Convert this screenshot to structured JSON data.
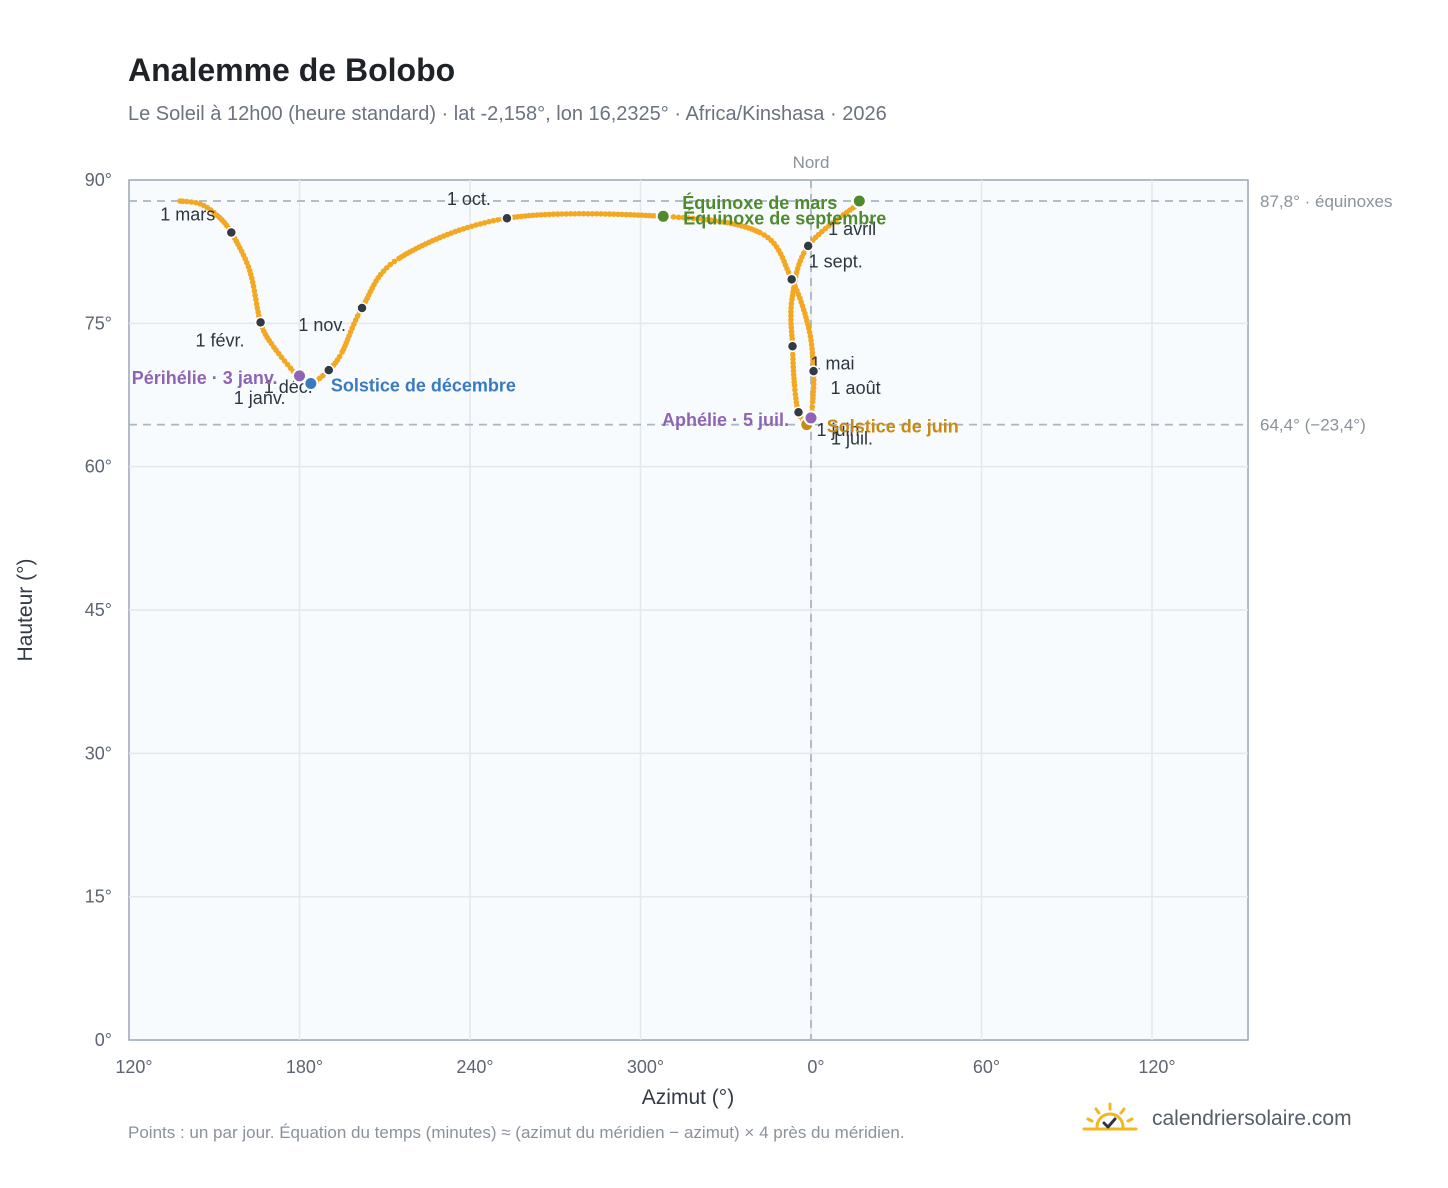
{
  "title": "Analemme de Bolobo",
  "subtitle": "Le Soleil à 12h00 (heure standard) · lat -2,158°, lon 16,2325° · Africa/Kinshasa · 2026",
  "footnote": "Points : un par jour. Équation du temps (minutes) ≈ (azimut du méridien − azimut) × 4 près du méridien.",
  "brand": {
    "text": "calendriersolaire.com",
    "icon": "sun-check-icon"
  },
  "colors": {
    "curve": "#f3a824",
    "month_marker": "#333a45",
    "equinox": "#4f8a2f",
    "june_solstice": "#c98a12",
    "december_solstice": "#3a7bbf",
    "apsis": "#8e65b4",
    "plot_bg": "#f8fbfd",
    "grid": "#e3e8ee",
    "reference_line": "#aab6c2"
  },
  "chart_data": {
    "type": "scatter",
    "xlabel": "Azimut (°)",
    "ylabel": "Hauteur (°)",
    "x_ticks": [
      "120°",
      "180°",
      "240°",
      "300°",
      "0°",
      "60°",
      "120°"
    ],
    "y_ticks": [
      "0°",
      "15°",
      "30°",
      "45°",
      "60°",
      "75°",
      "90°"
    ],
    "ylim": [
      0,
      90
    ],
    "meridian_label": "Nord",
    "reference_lines": [
      {
        "label": "87,8° · équinoxes",
        "y": 87.8
      },
      {
        "label": "64,4° (−23,4°)",
        "y": 64.4
      }
    ],
    "analemma_points": [
      {
        "date": "1 janv.",
        "az": 180.0,
        "alt": 69.2
      },
      {
        "date": "15 janv.",
        "az": 171.0,
        "alt": 72.5
      },
      {
        "date": "1 févr.",
        "az": 166.3,
        "alt": 75.1
      },
      {
        "date": "15 févr.",
        "az": 162.5,
        "alt": 80.5
      },
      {
        "date": "1 mars",
        "az": 156.0,
        "alt": 84.5
      },
      {
        "date": "8 mars",
        "az": 151.0,
        "alt": 86.3
      },
      {
        "date": "15 mars",
        "az": 145.0,
        "alt": 87.5
      },
      {
        "date": "20 mars",
        "az": 138.0,
        "alt": 87.8
      },
      {
        "date": "27 mars",
        "az": 18.0,
        "alt": 87.8
      },
      {
        "date": "1 avril",
        "az": 359.0,
        "alt": 83.1
      },
      {
        "date": "15 avril",
        "az": 353.3,
        "alt": 77.5
      },
      {
        "date": "1 mai",
        "az": 353.5,
        "alt": 72.6
      },
      {
        "date": "15 mai",
        "az": 354.2,
        "alt": 68.5
      },
      {
        "date": "1 juin",
        "az": 355.6,
        "alt": 65.7
      },
      {
        "date": "21 juin",
        "az": 358.5,
        "alt": 64.4
      },
      {
        "date": "1 juil.",
        "az": 359.3,
        "alt": 64.6
      },
      {
        "date": "5 juil.",
        "az": 0.0,
        "alt": 65.1
      },
      {
        "date": "15 juil.",
        "az": 0.6,
        "alt": 66.8
      },
      {
        "date": "1 août",
        "az": 0.9,
        "alt": 70.0
      },
      {
        "date": "15 août",
        "az": 359.2,
        "alt": 74.5
      },
      {
        "date": "1 sept.",
        "az": 353.2,
        "alt": 79.6
      },
      {
        "date": "15 sept.",
        "az": 342.0,
        "alt": 84.5
      },
      {
        "date": "23 sept.",
        "az": 308.0,
        "alt": 86.2
      },
      {
        "date": "1 oct.",
        "az": 253.0,
        "alt": 86.0
      },
      {
        "date": "15 oct.",
        "az": 215.0,
        "alt": 81.8
      },
      {
        "date": "1 nov.",
        "az": 202.0,
        "alt": 76.6
      },
      {
        "date": "15 nov.",
        "az": 195.0,
        "alt": 72.0
      },
      {
        "date": "1 déc.",
        "az": 190.3,
        "alt": 70.1
      },
      {
        "date": "21 déc.",
        "az": 184.0,
        "alt": 68.7
      },
      {
        "date": "31 déc.",
        "az": 180.0,
        "alt": 69.2
      }
    ],
    "month_markers": [
      {
        "label": "1 janv.",
        "az": 180.0,
        "alt": 69.2,
        "anchor": "end",
        "dx": -14,
        "dy": 25
      },
      {
        "label": "1 févr.",
        "az": 166.3,
        "alt": 75.1,
        "anchor": "end",
        "dx": -16,
        "dy": 24
      },
      {
        "label": "1 mars",
        "az": 156.0,
        "alt": 84.5,
        "anchor": "end",
        "dx": -16,
        "dy": -12
      },
      {
        "label": "1 avril",
        "az": 359.0,
        "alt": 83.1,
        "anchor": "start",
        "dx": 20,
        "dy": -11
      },
      {
        "label": "1 mai",
        "az": 353.5,
        "alt": 72.6,
        "anchor": "start",
        "dx": 18,
        "dy": 23
      },
      {
        "label": "1 juin",
        "az": 355.6,
        "alt": 65.7,
        "anchor": "start",
        "dx": 18,
        "dy": 24
      },
      {
        "label": "1 juil.",
        "az": 359.3,
        "alt": 64.6,
        "anchor": "start",
        "dx": 22,
        "dy": 22
      },
      {
        "label": "1 août",
        "az": 0.9,
        "alt": 70.0,
        "anchor": "start",
        "dx": 17,
        "dy": 23
      },
      {
        "label": "1 sept.",
        "az": 353.2,
        "alt": 79.6,
        "anchor": "start",
        "dx": 17,
        "dy": -12
      },
      {
        "label": "1 oct.",
        "az": 253.0,
        "alt": 86.0,
        "anchor": "end",
        "dx": -16,
        "dy": -13
      },
      {
        "label": "1 nov.",
        "az": 202.0,
        "alt": 76.6,
        "anchor": "end",
        "dx": -16,
        "dy": 23
      },
      {
        "label": "1 déc.",
        "az": 190.3,
        "alt": 70.1,
        "anchor": "end",
        "dx": -16,
        "dy": 23
      }
    ],
    "events": [
      {
        "label": "Équinoxe de mars",
        "az": 17.0,
        "alt": 87.8,
        "color": "#4f8a2f",
        "anchor": "end",
        "dx": -22,
        "dy": 8
      },
      {
        "label": "Équinoxe de septembre",
        "az": 308.0,
        "alt": 86.2,
        "color": "#4f8a2f",
        "anchor": "start",
        "dx": 20,
        "dy": 8
      },
      {
        "label": "Solstice de juin",
        "az": 358.5,
        "alt": 64.4,
        "color": "#c98a12",
        "anchor": "start",
        "dx": 20,
        "dy": 8
      },
      {
        "label": "Solstice de décembre",
        "az": 184.0,
        "alt": 68.7,
        "color": "#3a7bbf",
        "anchor": "start",
        "dx": 20,
        "dy": 8
      },
      {
        "label": "Périhélie · 3 janv.",
        "az": 180.0,
        "alt": 69.5,
        "color": "#8e65b4",
        "anchor": "end",
        "dx": -22,
        "dy": 8
      },
      {
        "label": "Aphélie · 5 juil.",
        "az": 0.0,
        "alt": 65.1,
        "color": "#8e65b4",
        "anchor": "end",
        "dx": -22,
        "dy": 8
      }
    ]
  }
}
